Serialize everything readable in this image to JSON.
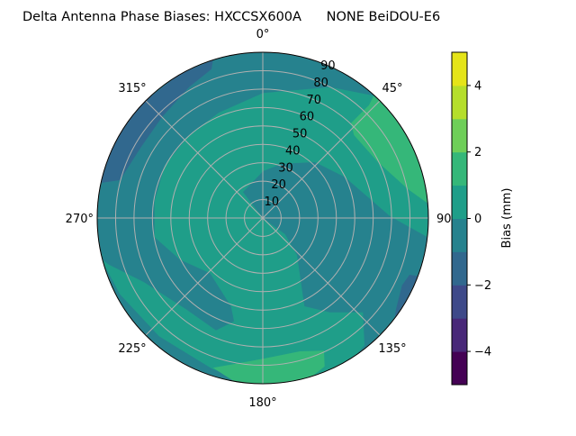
{
  "chart_data": {
    "type": "heatmap",
    "subtype": "polar filled contour",
    "title": "Delta Antenna Phase Biases: HXCCSX600A      NONE BeiDOU-E6",
    "angular_axis": {
      "direction": "clockwise",
      "zero_location": "north",
      "tick_labels": [
        "0°",
        "45°",
        "90°",
        "135°",
        "180°",
        "225°",
        "270°",
        "315°"
      ],
      "tick_values": [
        0,
        45,
        90,
        135,
        180,
        225,
        270,
        315
      ]
    },
    "radial_axis": {
      "range": [
        0,
        90
      ],
      "tick_labels": [
        "10",
        "20",
        "30",
        "40",
        "50",
        "60",
        "70",
        "80",
        "90"
      ],
      "tick_values": [
        10,
        20,
        30,
        40,
        50,
        60,
        70,
        80,
        90
      ]
    },
    "grid": true,
    "colorbar": {
      "label": "Bias (mm)",
      "range": [
        -5,
        5
      ],
      "levels": [
        -5,
        -4,
        -3,
        -2,
        -1,
        0,
        1,
        2,
        3,
        4,
        5
      ],
      "colors": [
        "#440154",
        "#482878",
        "#3e4989",
        "#31688e",
        "#26828e",
        "#1f9e89",
        "#35b779",
        "#6ece58",
        "#b5de2b",
        "#e5e419"
      ],
      "tick_labels": [
        "−4",
        "−2",
        "0",
        "2",
        "4"
      ],
      "tick_values": [
        -4,
        -2,
        0,
        2,
        4
      ],
      "colormap": "viridis",
      "placement": "right"
    },
    "dominant_levels": {
      "background": "-1 to 0",
      "band": "0 to 1",
      "high_patches": "1 to 2 (near 45° and 180° at horizon)",
      "low_patches": "-2 to -1 (near 315° and 120° at horizon)"
    }
  }
}
